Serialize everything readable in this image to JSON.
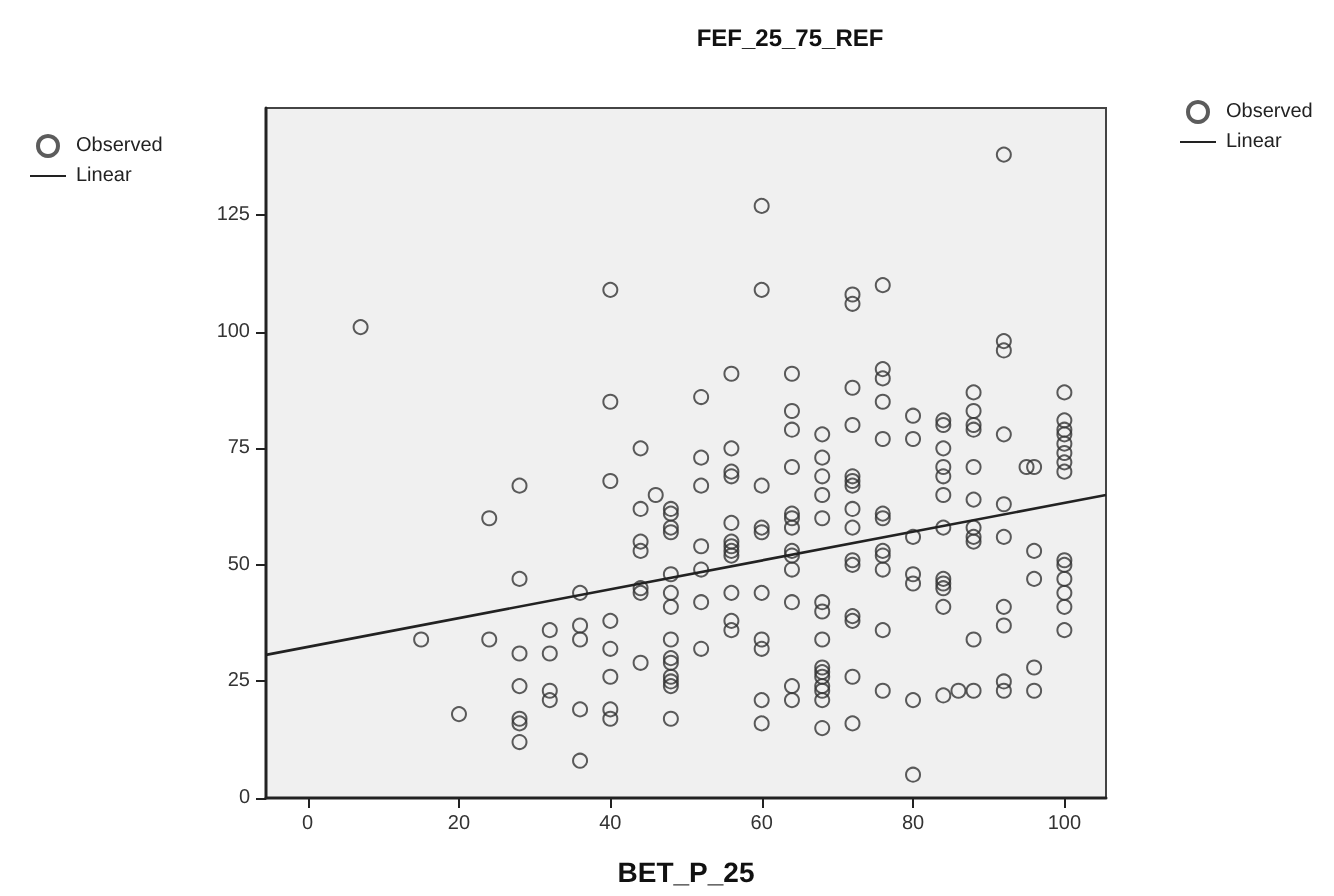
{
  "chart_data": {
    "type": "scatter",
    "title": "FEF_25_75_REF",
    "xlabel": "BET_P_25",
    "xlim": [
      -5.5,
      105.5
    ],
    "xticks": [
      0,
      20,
      40,
      60,
      80,
      100
    ],
    "ylim": [
      0,
      148
    ],
    "yticks": [
      0,
      25,
      50,
      75,
      100,
      125
    ],
    "grid": false,
    "legend": [
      "top left",
      "top right"
    ],
    "marker": "circle",
    "series": [
      {
        "name": "Observed",
        "color": "#333333",
        "x": [
          7,
          15,
          20,
          24,
          24,
          28,
          28,
          28,
          28,
          28,
          28,
          28,
          32,
          32,
          32,
          32,
          36,
          36,
          36,
          36,
          36,
          40,
          40,
          40,
          40,
          40,
          40,
          40,
          40,
          44,
          44,
          44,
          44,
          44,
          44,
          44,
          46,
          48,
          48,
          48,
          48,
          48,
          48,
          48,
          48,
          48,
          48,
          48,
          48,
          48,
          48,
          52,
          52,
          52,
          52,
          52,
          52,
          52,
          56,
          56,
          56,
          56,
          56,
          56,
          56,
          56,
          56,
          56,
          56,
          56,
          60,
          60,
          60,
          60,
          60,
          60,
          60,
          60,
          60,
          60,
          64,
          64,
          64,
          64,
          64,
          64,
          64,
          64,
          64,
          64,
          64,
          64,
          64,
          68,
          68,
          68,
          68,
          68,
          68,
          68,
          68,
          68,
          68,
          68,
          68,
          68,
          68,
          68,
          72,
          72,
          72,
          72,
          72,
          72,
          72,
          72,
          72,
          72,
          72,
          72,
          72,
          72,
          72,
          76,
          76,
          76,
          76,
          76,
          76,
          76,
          76,
          76,
          76,
          76,
          76,
          80,
          80,
          80,
          80,
          80,
          80,
          80,
          84,
          84,
          84,
          84,
          84,
          84,
          84,
          84,
          84,
          84,
          84,
          84,
          86,
          88,
          88,
          88,
          88,
          88,
          88,
          88,
          88,
          88,
          88,
          88,
          92,
          92,
          92,
          92,
          92,
          92,
          92,
          92,
          92,
          92,
          95,
          96,
          96,
          96,
          96,
          96,
          100,
          100,
          100,
          100,
          100,
          100,
          100,
          100,
          100,
          100,
          100,
          100,
          100,
          100
        ],
        "values": [
          101,
          34,
          18,
          60,
          34,
          67,
          47,
          31,
          24,
          17,
          16,
          12,
          36,
          31,
          23,
          21,
          44,
          37,
          34,
          19,
          8,
          109,
          85,
          68,
          38,
          32,
          26,
          19,
          17,
          75,
          62,
          55,
          53,
          45,
          44,
          29,
          65,
          62,
          61,
          58,
          57,
          48,
          44,
          41,
          34,
          30,
          29,
          26,
          25,
          24,
          17,
          86,
          73,
          67,
          54,
          49,
          42,
          32,
          91,
          75,
          70,
          69,
          59,
          55,
          54,
          53,
          52,
          44,
          38,
          36,
          127,
          109,
          67,
          58,
          57,
          44,
          34,
          32,
          21,
          16,
          91,
          83,
          79,
          71,
          61,
          60,
          58,
          53,
          52,
          49,
          42,
          24,
          21,
          78,
          73,
          69,
          65,
          60,
          42,
          40,
          34,
          28,
          27,
          26,
          24,
          23,
          21,
          15,
          108,
          106,
          88,
          80,
          69,
          68,
          67,
          62,
          58,
          51,
          50,
          39,
          38,
          26,
          16,
          110,
          92,
          90,
          85,
          77,
          61,
          60,
          53,
          52,
          49,
          36,
          23,
          82,
          77,
          56,
          48,
          46,
          21,
          5,
          81,
          80,
          75,
          71,
          69,
          65,
          58,
          47,
          46,
          45,
          41,
          22,
          23,
          87,
          83,
          80,
          79,
          71,
          64,
          58,
          56,
          55,
          34,
          23,
          138,
          98,
          96,
          78,
          63,
          56,
          41,
          37,
          25,
          23,
          71,
          71,
          53,
          47,
          28,
          23,
          87,
          81,
          79,
          78,
          76,
          74,
          72,
          70,
          51,
          50,
          47,
          44,
          41,
          36
        ]
      },
      {
        "name": "Linear",
        "type": "line",
        "color": "#222222",
        "marker": "none",
        "line_style": "solid",
        "x": [
          -5.5,
          105.5
        ],
        "values": [
          30.7,
          65
        ]
      }
    ]
  }
}
